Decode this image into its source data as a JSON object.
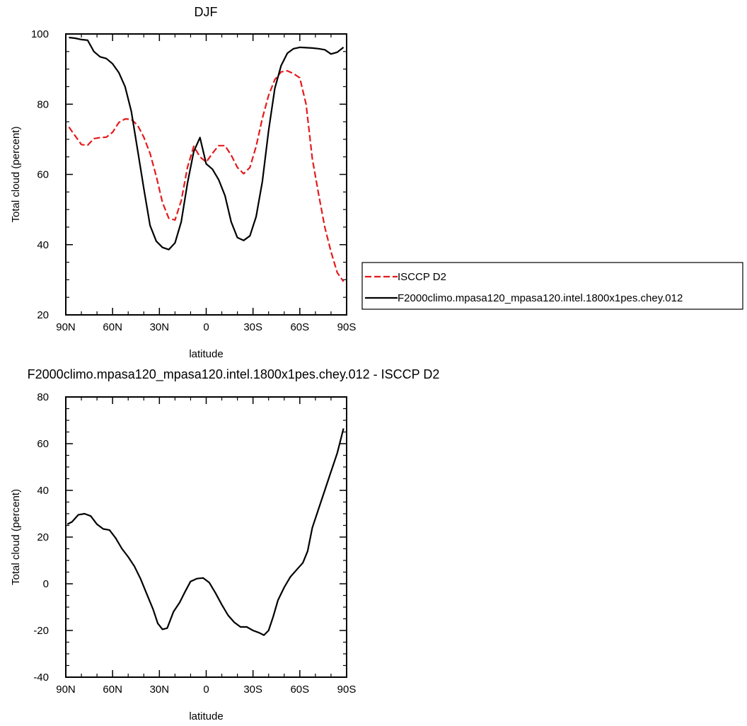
{
  "chart_data": [
    {
      "type": "line",
      "title": "DJF",
      "xlabel": "latitude",
      "ylabel": "Total cloud (percent)",
      "xlim": [
        90,
        -90
      ],
      "ylim": [
        20,
        100
      ],
      "xticks": [
        90,
        60,
        30,
        0,
        -30,
        -60,
        -90
      ],
      "xtick_labels": [
        "90N",
        "60N",
        "30N",
        "0",
        "30S",
        "60S",
        "90S"
      ],
      "yticks": [
        20,
        40,
        60,
        80,
        100
      ],
      "ytick_labels": [
        "20",
        "40",
        "60",
        "80",
        "100"
      ],
      "legend_position": "right",
      "series": [
        {
          "name": "ISCCP D2",
          "color": "#e41a1c",
          "dash": true,
          "x": [
            88,
            84,
            80,
            76,
            72,
            68,
            64,
            60,
            56,
            52,
            48,
            44,
            40,
            36,
            32,
            28,
            24,
            20,
            16,
            12,
            8,
            4,
            0,
            -4,
            -8,
            -12,
            -16,
            -20,
            -24,
            -28,
            -32,
            -36,
            -40,
            -44,
            -48,
            -52,
            -56,
            -60,
            -64,
            -68,
            -72,
            -76,
            -80,
            -84,
            -88
          ],
          "y": [
            73.5,
            71,
            68.5,
            68.3,
            70.2,
            70.5,
            70.6,
            72,
            74.8,
            75.8,
            75.7,
            74,
            70.6,
            66,
            59.5,
            52,
            47.5,
            47,
            52.5,
            62,
            68,
            65,
            63.5,
            66,
            68.2,
            68.2,
            65.5,
            62,
            60.2,
            62,
            68,
            76,
            82.5,
            87,
            89.2,
            89.5,
            88.7,
            87.5,
            80,
            64.5,
            54.5,
            45,
            38,
            32,
            29.5
          ]
        },
        {
          "name": "F2000climo.mpasa120_mpasa120.intel.1800x1pes.chey.012",
          "color": "#000000",
          "dash": false,
          "x": [
            88,
            84,
            80,
            76,
            72,
            68,
            64,
            60,
            56,
            52,
            48,
            44,
            40,
            36,
            32,
            28,
            24,
            20,
            16,
            12,
            8,
            4,
            0,
            -4,
            -8,
            -12,
            -16,
            -20,
            -24,
            -28,
            -32,
            -36,
            -40,
            -44,
            -48,
            -52,
            -56,
            -60,
            -64,
            -68,
            -72,
            -76,
            -80,
            -84,
            -88
          ],
          "y": [
            99,
            98.8,
            98.4,
            98.2,
            95,
            93.5,
            93,
            91.5,
            89,
            85,
            78,
            67,
            56,
            45.5,
            41,
            39.2,
            38.6,
            40.5,
            46.5,
            57.5,
            66.5,
            70.5,
            63,
            61.5,
            58.5,
            54,
            46.5,
            42,
            41.2,
            42.5,
            48,
            58,
            72.5,
            84.5,
            91,
            94.5,
            95.8,
            96.2,
            96.1,
            96,
            95.8,
            95.5,
            94.3,
            94.8,
            96.2
          ]
        }
      ]
    },
    {
      "type": "line",
      "title": "F2000climo.mpasa120_mpasa120.intel.1800x1pes.chey.012 - ISCCP D2",
      "xlabel": "latitude",
      "ylabel": "Total cloud (percent)",
      "xlim": [
        90,
        -90
      ],
      "ylim": [
        -40,
        80
      ],
      "xticks": [
        90,
        60,
        30,
        0,
        -30,
        -60,
        -90
      ],
      "xtick_labels": [
        "90N",
        "60N",
        "30N",
        "0",
        "30S",
        "60S",
        "90S"
      ],
      "yticks": [
        -40,
        -20,
        0,
        20,
        40,
        60,
        80
      ],
      "ytick_labels": [
        "-40",
        "-20",
        "0",
        "20",
        "40",
        "60",
        "80"
      ],
      "series": [
        {
          "color": "#000000",
          "dash": false,
          "x": [
            89,
            86,
            82,
            78,
            74,
            70,
            66,
            62,
            58,
            54,
            50,
            46,
            42,
            38,
            34,
            31,
            28,
            25,
            21,
            17,
            14,
            10,
            6,
            2,
            -2,
            -6,
            -10,
            -14,
            -18,
            -22,
            -26,
            -30,
            -34,
            -37,
            -40,
            -43,
            -46,
            -50,
            -54,
            -58,
            -62,
            -65,
            -68,
            -72,
            -76,
            -80,
            -84,
            -88
          ],
          "y": [
            25.5,
            26.5,
            29.5,
            30,
            29,
            25.5,
            23.5,
            23,
            19.5,
            15,
            11.5,
            7.5,
            2,
            -4.5,
            -11,
            -17,
            -19.5,
            -19,
            -12,
            -8,
            -4,
            1,
            2.2,
            2.5,
            0.5,
            -4,
            -9,
            -13.5,
            -16.5,
            -18.5,
            -18.5,
            -20,
            -21,
            -22,
            -20,
            -14,
            -7,
            -1.5,
            3,
            6,
            9,
            14,
            24,
            32,
            40,
            48,
            56,
            66.5
          ]
        }
      ]
    }
  ]
}
